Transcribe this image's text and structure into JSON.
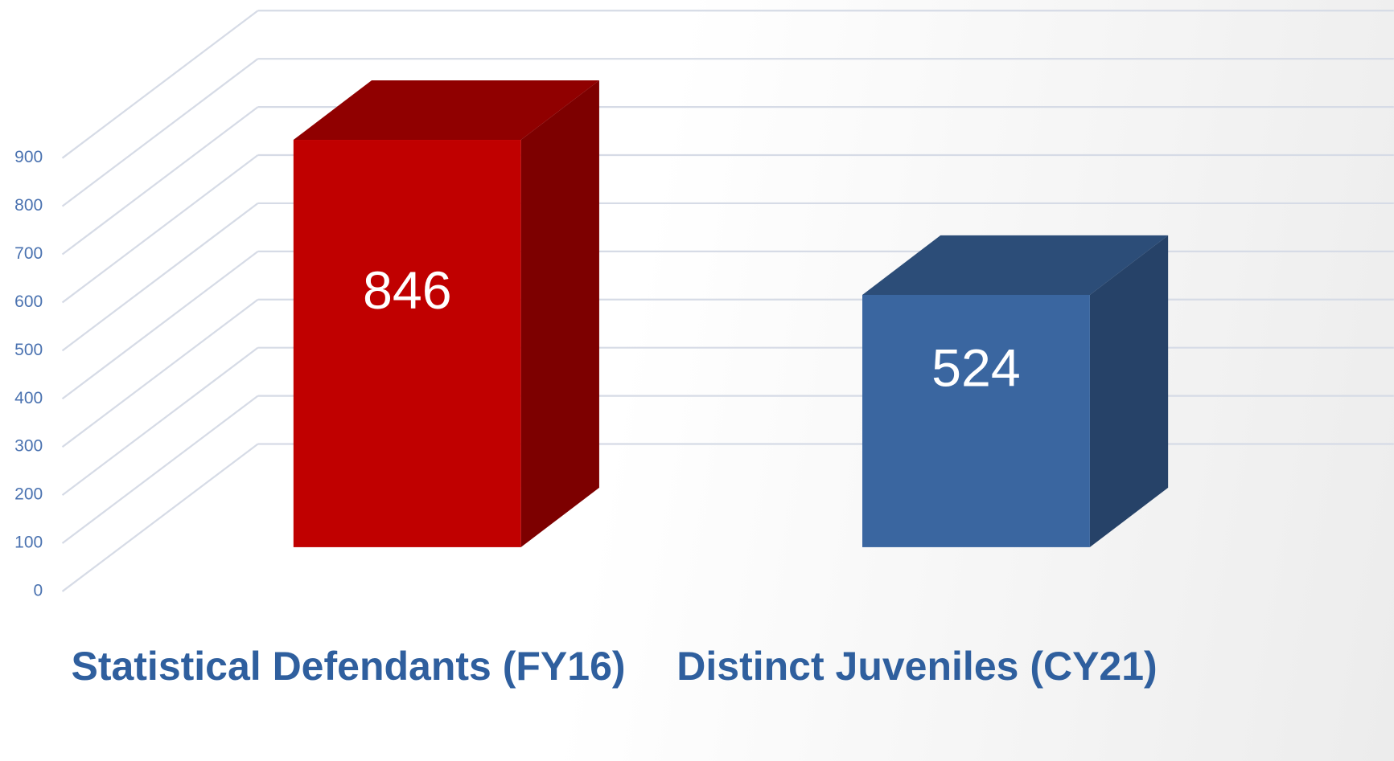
{
  "chart_data": {
    "type": "bar3d",
    "categories": [
      "Statistical Defendants (FY16)",
      "Distinct Juveniles (CY21)"
    ],
    "values": [
      846,
      524
    ],
    "colors": [
      "#c00000",
      "#3a66a0"
    ],
    "ylim": [
      0,
      900
    ],
    "yticks": [
      0,
      100,
      200,
      300,
      400,
      500,
      600,
      700,
      800,
      900
    ],
    "grid": true
  }
}
